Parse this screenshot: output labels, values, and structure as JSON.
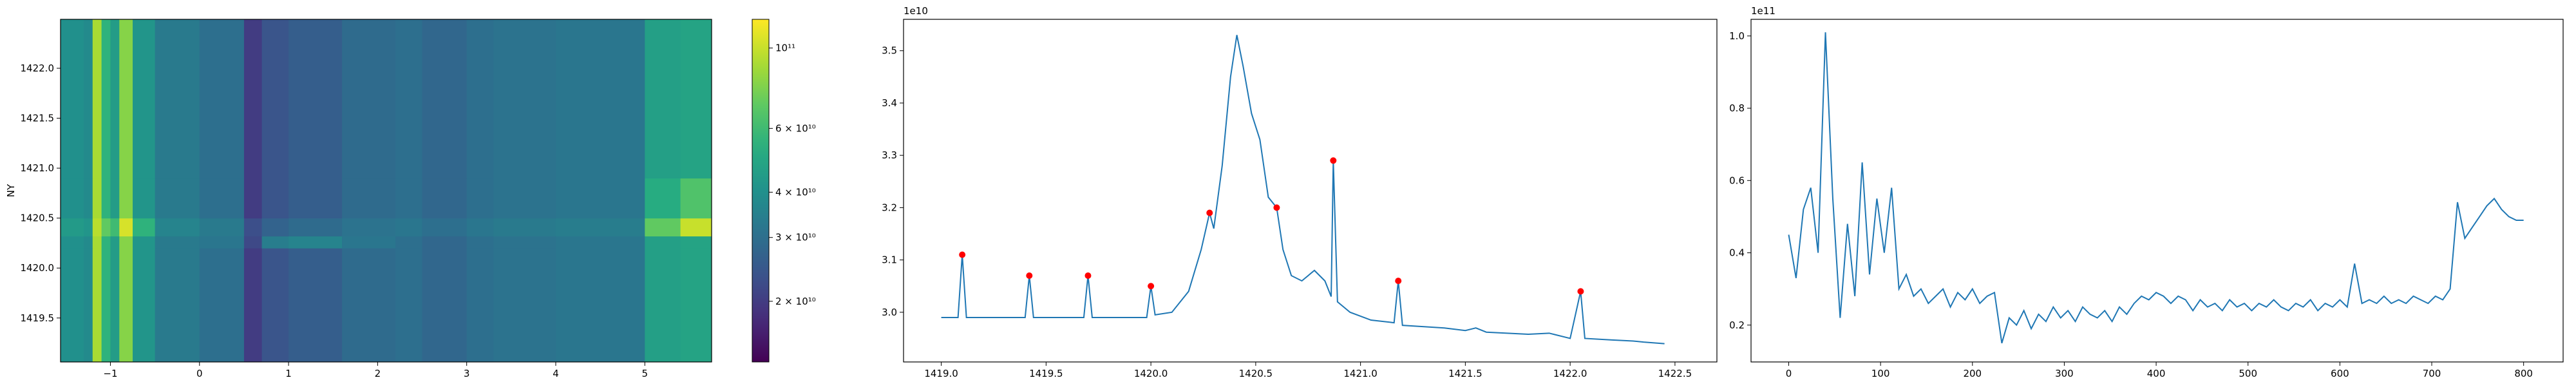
{
  "chart_data": [
    {
      "type": "heatmap",
      "ylabel": "NY",
      "colormap": "viridis",
      "color_scale": "log",
      "x": [
        -1.56,
        -1.3,
        -1.2,
        -1.1,
        -1.0,
        -0.9,
        -0.75,
        -0.5,
        0,
        0.5,
        0.7,
        1.0,
        1.6,
        2.2,
        2.5,
        3.0,
        3.3,
        4.0,
        5.0,
        5.4,
        5.75
      ],
      "y": [
        1419.06,
        1420.2,
        1420.32,
        1420.5,
        1420.9,
        1422.49
      ],
      "z": [
        [
          40000000000.0,
          38000000000.0,
          90000000000.0,
          55000000000.0,
          45000000000.0,
          80000000000.0,
          42000000000.0,
          33000000000.0,
          30000000000.0,
          20000000000.0,
          24000000000.0,
          26000000000.0,
          29000000000.0,
          30000000000.0,
          28000000000.0,
          30000000000.0,
          31000000000.0,
          32000000000.0,
          46000000000.0,
          48000000000.0
        ],
        [
          40000000000.0,
          38000000000.0,
          90000000000.0,
          55000000000.0,
          45000000000.0,
          80000000000.0,
          42000000000.0,
          33000000000.0,
          32000000000.0,
          22000000000.0,
          34000000000.0,
          36000000000.0,
          32000000000.0,
          30000000000.0,
          28000000000.0,
          30000000000.0,
          31000000000.0,
          32000000000.0,
          46000000000.0,
          48000000000.0
        ],
        [
          44000000000.0,
          42000000000.0,
          95000000000.0,
          70000000000.0,
          60000000000.0,
          105000000000.0,
          55000000000.0,
          36000000000.0,
          33000000000.0,
          23000000000.0,
          27000000000.0,
          29000000000.0,
          31000000000.0,
          32000000000.0,
          30000000000.0,
          32000000000.0,
          33000000000.0,
          34000000000.0,
          70000000000.0,
          100000000000.0
        ],
        [
          40000000000.0,
          38000000000.0,
          90000000000.0,
          55000000000.0,
          45000000000.0,
          80000000000.0,
          42000000000.0,
          33000000000.0,
          30000000000.0,
          20000000000.0,
          24000000000.0,
          26000000000.0,
          29000000000.0,
          30000000000.0,
          28000000000.0,
          30000000000.0,
          31000000000.0,
          32000000000.0,
          52000000000.0,
          65000000000.0
        ],
        [
          40000000000.0,
          38000000000.0,
          90000000000.0,
          55000000000.0,
          45000000000.0,
          80000000000.0,
          42000000000.0,
          33000000000.0,
          30000000000.0,
          20000000000.0,
          24000000000.0,
          26000000000.0,
          29000000000.0,
          30000000000.0,
          28000000000.0,
          30000000000.0,
          31000000000.0,
          32000000000.0,
          46000000000.0,
          48000000000.0
        ]
      ],
      "xlim": [
        -1.56,
        5.75
      ],
      "ylim": [
        1419.06,
        1422.49
      ],
      "xticks": [
        {
          "value": -1,
          "label": "−1"
        },
        0,
        1,
        2,
        3,
        4,
        5
      ],
      "yticks": [
        1419.5,
        {
          "value": 1420,
          "label": "1420.0"
        },
        1420.5,
        {
          "value": 1421,
          "label": "1421.0"
        },
        1421.5,
        {
          "value": 1422,
          "label": "1422.0"
        }
      ],
      "clim": [
        13600000000.0,
        120000000000.0
      ],
      "cticks": [
        {
          "value": 20000000000.0,
          "label": "2 × 10¹⁰"
        },
        {
          "value": 30000000000.0,
          "label": "3 × 10¹⁰"
        },
        {
          "value": 40000000000.0,
          "label": "4 × 10¹⁰"
        },
        {
          "value": 60000000000.0,
          "label": "6 × 10¹⁰"
        },
        {
          "value": 100000000000.0,
          "label": "10¹¹"
        }
      ]
    },
    {
      "type": "line",
      "offset_text": "1e10",
      "xlim": [
        1418.82,
        1422.7
      ],
      "ylim": [
        2.905,
        3.56
      ],
      "xticks": [
        {
          "value": 1419,
          "label": "1419.0"
        },
        1419.5,
        {
          "value": 1420,
          "label": "1420.0"
        },
        1420.5,
        {
          "value": 1421,
          "label": "1421.0"
        },
        1421.5,
        {
          "value": 1422,
          "label": "1422.0"
        },
        1422.5
      ],
      "yticks": [
        {
          "value": 3,
          "label": "3.0"
        },
        3.1,
        3.2,
        3.3,
        3.4,
        3.5
      ],
      "series": [
        {
          "color": "#1f77b4",
          "x": [
            1419.0,
            1419.08,
            1419.1,
            1419.12,
            1419.4,
            1419.42,
            1419.44,
            1419.68,
            1419.7,
            1419.72,
            1419.98,
            1420.0,
            1420.02,
            1420.1,
            1420.18,
            1420.24,
            1420.28,
            1420.3,
            1420.34,
            1420.38,
            1420.41,
            1420.44,
            1420.48,
            1420.52,
            1420.56,
            1420.6,
            1420.63,
            1420.67,
            1420.72,
            1420.78,
            1420.83,
            1420.86,
            1420.87,
            1420.89,
            1420.95,
            1421.05,
            1421.16,
            1421.18,
            1421.2,
            1421.4,
            1421.5,
            1421.55,
            1421.6,
            1421.8,
            1421.9,
            1422.0,
            1422.05,
            1422.07,
            1422.2,
            1422.3,
            1422.35,
            1422.45
          ],
          "values": [
            2.99,
            2.99,
            3.11,
            2.99,
            2.99,
            3.07,
            2.99,
            2.99,
            3.07,
            2.99,
            2.99,
            3.05,
            2.995,
            3.0,
            3.04,
            3.12,
            3.19,
            3.16,
            3.28,
            3.45,
            3.53,
            3.47,
            3.38,
            3.33,
            3.22,
            3.2,
            3.12,
            3.07,
            3.06,
            3.08,
            3.06,
            3.03,
            3.29,
            3.02,
            3.0,
            2.985,
            2.98,
            3.06,
            2.975,
            2.97,
            2.965,
            2.97,
            2.962,
            2.958,
            2.96,
            2.95,
            3.04,
            2.95,
            2.947,
            2.945,
            2.943,
            2.94
          ]
        },
        {
          "color": "#ff0000",
          "marker": "o",
          "x": [
            1419.1,
            1419.42,
            1419.7,
            1420.0,
            1420.28,
            1420.6,
            1420.87,
            1421.18,
            1422.05
          ],
          "values": [
            3.11,
            3.07,
            3.07,
            3.05,
            3.19,
            3.2,
            3.29,
            3.06,
            3.04
          ]
        }
      ]
    },
    {
      "type": "line",
      "offset_text": "1e11",
      "xlim": [
        -41,
        843
      ],
      "ylim": [
        0.098,
        1.046
      ],
      "xticks": [
        0,
        100,
        200,
        300,
        400,
        500,
        600,
        700,
        800
      ],
      "yticks": [
        0.2,
        0.4,
        0.6,
        0.8,
        {
          "value": 1,
          "label": "1.0"
        }
      ],
      "series": [
        {
          "color": "#1f77b4",
          "x": [
            0,
            8,
            16,
            24,
            32,
            40,
            48,
            56,
            64,
            72,
            80,
            88,
            96,
            104,
            112,
            120,
            128,
            136,
            144,
            152,
            160,
            168,
            176,
            184,
            192,
            200,
            208,
            216,
            224,
            232,
            240,
            248,
            256,
            264,
            272,
            280,
            288,
            296,
            304,
            312,
            320,
            328,
            336,
            344,
            352,
            360,
            368,
            376,
            384,
            392,
            400,
            408,
            416,
            424,
            432,
            440,
            448,
            456,
            464,
            472,
            480,
            488,
            496,
            504,
            512,
            520,
            528,
            536,
            544,
            552,
            560,
            568,
            576,
            584,
            592,
            600,
            608,
            616,
            624,
            632,
            640,
            648,
            656,
            664,
            672,
            680,
            688,
            696,
            704,
            712,
            720,
            728,
            736,
            744,
            752,
            760,
            768,
            776,
            784,
            792,
            800
          ],
          "values": [
            0.45,
            0.33,
            0.52,
            0.58,
            0.4,
            1.01,
            0.55,
            0.22,
            0.48,
            0.28,
            0.65,
            0.34,
            0.55,
            0.4,
            0.58,
            0.3,
            0.34,
            0.28,
            0.3,
            0.26,
            0.28,
            0.3,
            0.25,
            0.29,
            0.27,
            0.3,
            0.26,
            0.28,
            0.29,
            0.15,
            0.22,
            0.2,
            0.24,
            0.19,
            0.23,
            0.21,
            0.25,
            0.22,
            0.24,
            0.21,
            0.25,
            0.23,
            0.22,
            0.24,
            0.21,
            0.25,
            0.23,
            0.26,
            0.28,
            0.27,
            0.29,
            0.28,
            0.26,
            0.28,
            0.27,
            0.24,
            0.27,
            0.25,
            0.26,
            0.24,
            0.27,
            0.25,
            0.26,
            0.24,
            0.26,
            0.25,
            0.27,
            0.25,
            0.24,
            0.26,
            0.25,
            0.27,
            0.24,
            0.26,
            0.25,
            0.27,
            0.25,
            0.37,
            0.26,
            0.27,
            0.26,
            0.28,
            0.26,
            0.27,
            0.26,
            0.28,
            0.27,
            0.26,
            0.28,
            0.27,
            0.3,
            0.54,
            0.44,
            0.47,
            0.5,
            0.53,
            0.55,
            0.52,
            0.5,
            0.49,
            0.49
          ]
        }
      ]
    }
  ]
}
